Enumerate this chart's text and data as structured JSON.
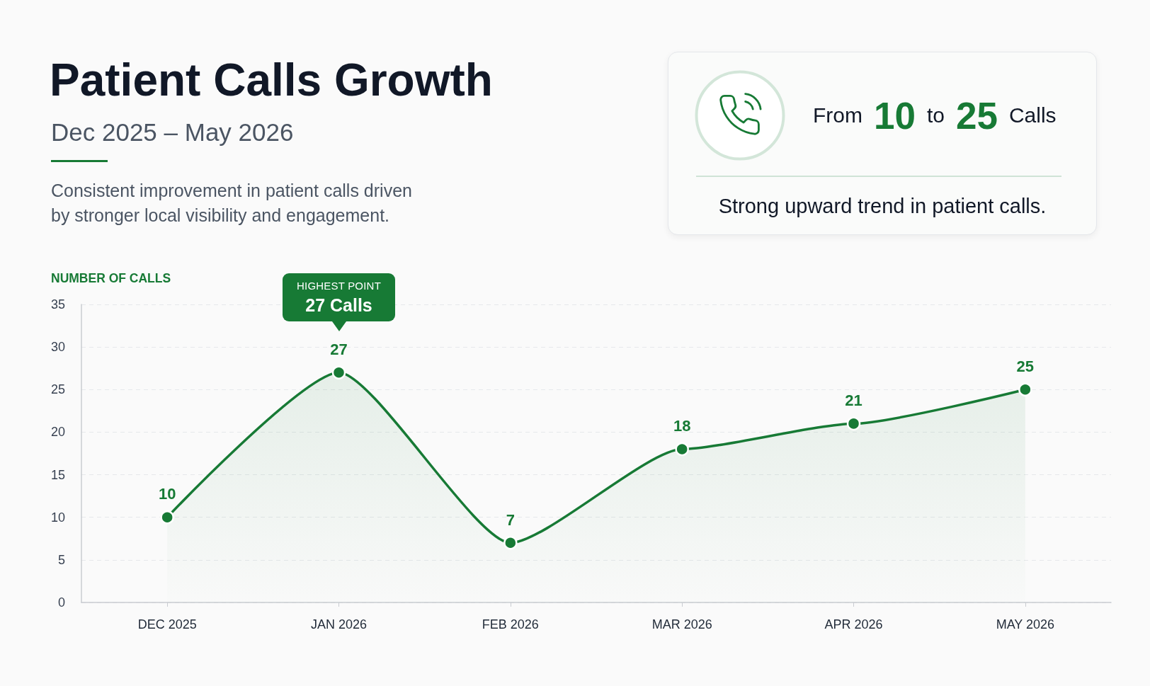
{
  "chart_data": {
    "type": "area",
    "title": "Patient Calls Growth",
    "subtitle": "Dec 2025 – May 2026",
    "ylabel": "NUMBER OF CALLS",
    "categories": [
      "DEC 2025",
      "JAN 2026",
      "FEB 2026",
      "MAR 2026",
      "APR 2026",
      "MAY 2026"
    ],
    "values": [
      10,
      27,
      7,
      18,
      21,
      25
    ],
    "color": "#177a35",
    "ylim": [
      0,
      35
    ],
    "yticks": [
      0,
      5,
      10,
      15,
      20,
      25,
      30,
      35
    ],
    "grid": "y",
    "marker": "circle",
    "line_style": "solid",
    "data_labels": true,
    "annotations": [
      "Consistent improvement in patient calls driven by stronger local visibility and engagement.",
      "From 10 to 25 Calls",
      "Strong upward trend in patient calls.",
      "HIGHEST POINT\n27 Calls"
    ]
  }
}
